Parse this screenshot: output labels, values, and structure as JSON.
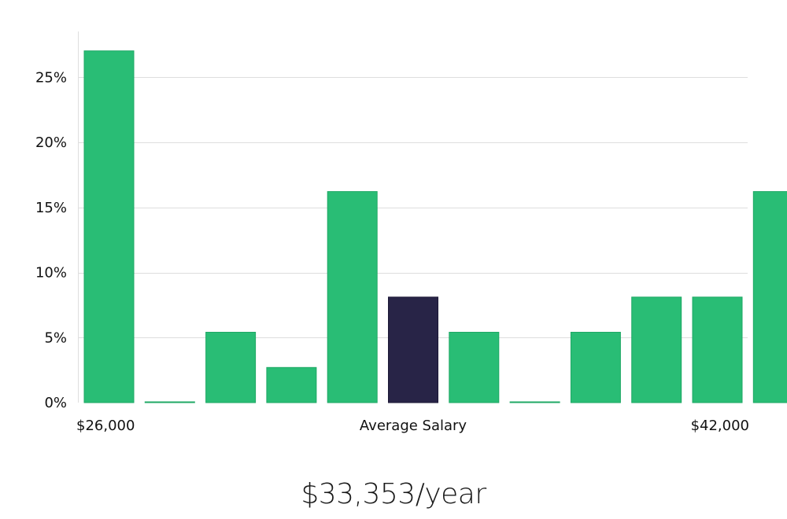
{
  "chart_data": {
    "type": "bar",
    "categories": [
      "1",
      "2",
      "3",
      "4",
      "5",
      "6",
      "7",
      "8",
      "9",
      "10",
      "11",
      "12"
    ],
    "values": [
      27.03,
      0,
      5.41,
      2.7,
      16.22,
      8.11,
      5.41,
      0,
      5.41,
      8.11,
      8.11,
      16.22
    ],
    "highlight_index": 5,
    "colors": {
      "bar": "#29bd75",
      "highlight": "#282447",
      "grid": "#dedede"
    },
    "ylim": [
      0,
      28
    ],
    "yticks": [
      0,
      5,
      10,
      15,
      20,
      25
    ],
    "ytick_labels": [
      "0%",
      "5%",
      "10%",
      "15%",
      "20%",
      "25%"
    ],
    "xlabels": {
      "left": "$26,000",
      "center": "Average Salary",
      "right": "$42,000"
    },
    "grid": true
  },
  "caption": "$33,353/year"
}
